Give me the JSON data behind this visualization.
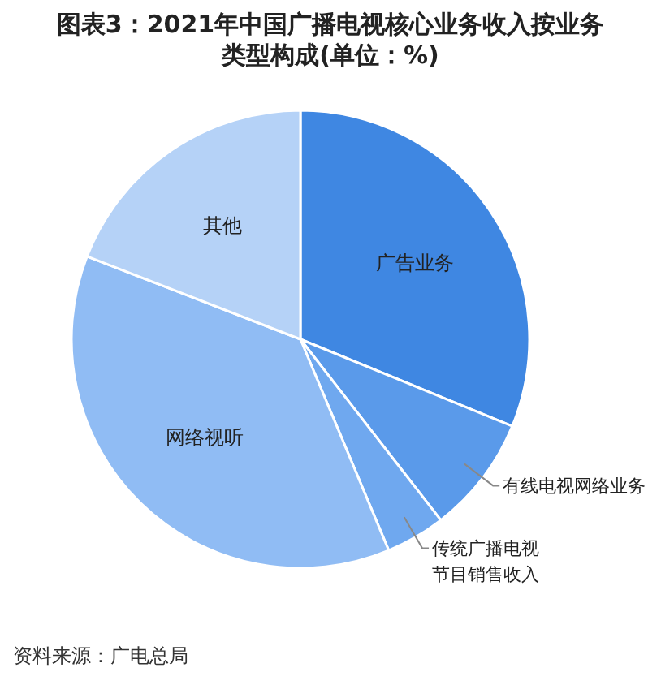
{
  "chart_data": {
    "type": "pie",
    "title": "图表3：2021年中国广播电视核心业务收入按业务类型构成(单位：%)",
    "categories": [
      "广告业务",
      "有线电视网络业务",
      "传统广播电视节目销售收入",
      "网络视听",
      "其他"
    ],
    "values": [
      31.2,
      8.3,
      4.2,
      37.2,
      19.1
    ],
    "colors": [
      "#3f87e2",
      "#5a9aea",
      "#6fa8ef",
      "#90bcf4",
      "#b5d2f7"
    ],
    "annotations": [
      "资料来源：广电总局"
    ]
  }
}
